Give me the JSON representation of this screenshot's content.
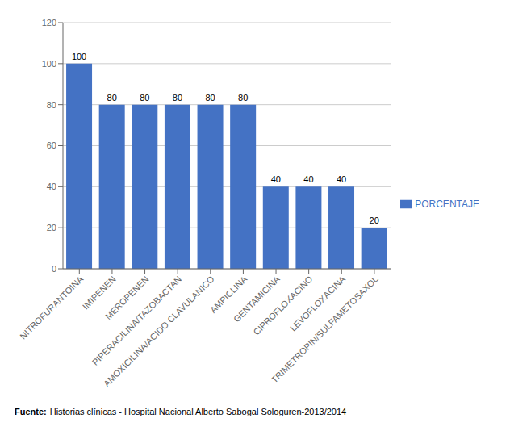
{
  "chart_data": {
    "type": "bar",
    "categories": [
      "NITROFURANTOINA",
      "IMIPENEN",
      "MEROPENEN",
      "PIPERACILINA/TAZOBACTAN",
      "AMOXICILINA/ACIDO CLAVULANICO",
      "AMPICLINA",
      "GENTAMICINA",
      "CIPROFLOXACINO",
      "LEVOFLOXACINA",
      "TRIMETROPIN/SULFAMETOSAXOL"
    ],
    "series": [
      {
        "name": "PORCENTAJE",
        "color": "#4472C4",
        "values": [
          100,
          80,
          80,
          80,
          80,
          80,
          40,
          40,
          40,
          20
        ]
      }
    ],
    "ylim": [
      0,
      120
    ],
    "yticks": [
      0,
      20,
      40,
      60,
      80,
      100,
      120
    ],
    "grid": true,
    "legend": "right",
    "data_labels": true,
    "annotations": [
      "Fuente:",
      "Historias clínicas - Hospital Nacional Alberto Sabogal Sologuren-2013/2014"
    ]
  }
}
